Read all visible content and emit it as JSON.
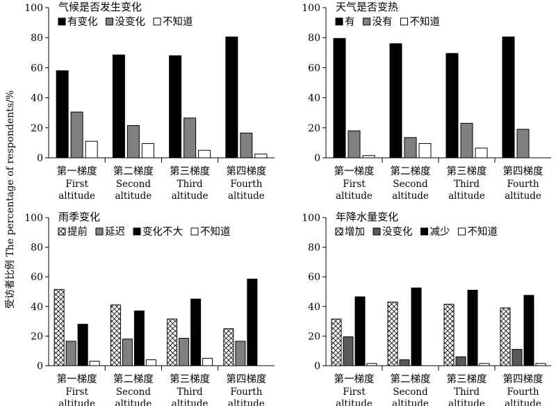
{
  "ylabel": "受访者比例 The percentage of respondents/%",
  "chart_data": [
    {
      "type": "bar",
      "title": "气候是否发生变化",
      "ylim": [
        0,
        100
      ],
      "yticks": [
        0,
        20,
        40,
        60,
        80,
        100
      ],
      "categories": [
        {
          "cn": "第一梯度",
          "en1": "First",
          "en2": "altitude"
        },
        {
          "cn": "第二梯度",
          "en1": "Second",
          "en2": "altitude"
        },
        {
          "cn": "第三梯度",
          "en1": "Third",
          "en2": "altitude"
        },
        {
          "cn": "第四梯度",
          "en1": "Fourth",
          "en2": "altitude"
        }
      ],
      "legend_position": "top-left",
      "series": [
        {
          "name": "有变化",
          "fill": "black",
          "values": [
            58,
            68.5,
            68,
            80.5
          ]
        },
        {
          "name": "没变化",
          "fill": "gray",
          "values": [
            30.5,
            21.5,
            26.5,
            16.5
          ]
        },
        {
          "name": "不知道",
          "fill": "white",
          "values": [
            11,
            9.5,
            5,
            2.5
          ]
        }
      ]
    },
    {
      "type": "bar",
      "title": "天气是否变热",
      "ylim": [
        0,
        100
      ],
      "yticks": [
        0,
        20,
        40,
        60,
        80,
        100
      ],
      "categories": [
        {
          "cn": "第一梯度",
          "en1": "First",
          "en2": "altitude"
        },
        {
          "cn": "第二梯度",
          "en1": "Second",
          "en2": "altitude"
        },
        {
          "cn": "第三梯度",
          "en1": "Third",
          "en2": "altitude"
        },
        {
          "cn": "第四梯度",
          "en1": "Fourth",
          "en2": "altitude"
        }
      ],
      "legend_position": "top-left",
      "series": [
        {
          "name": "有",
          "fill": "black",
          "values": [
            79.5,
            76,
            69.5,
            80.5
          ]
        },
        {
          "name": "没有",
          "fill": "gray",
          "values": [
            18,
            13.5,
            23,
            19
          ]
        },
        {
          "name": "不知道",
          "fill": "white",
          "values": [
            1.5,
            9.5,
            6.5,
            0
          ]
        }
      ]
    },
    {
      "type": "bar",
      "title": "雨季变化",
      "ylim": [
        0,
        100
      ],
      "yticks": [
        0,
        20,
        40,
        60,
        80,
        100
      ],
      "categories": [
        {
          "cn": "第一梯度",
          "en1": "First",
          "en2": "altitude"
        },
        {
          "cn": "第二梯度",
          "en1": "Second",
          "en2": "altitude"
        },
        {
          "cn": "第三梯度",
          "en1": "Third",
          "en2": "altitude"
        },
        {
          "cn": "第四梯度",
          "en1": "Fourth",
          "en2": "altitude"
        }
      ],
      "legend_position": "top-left",
      "series": [
        {
          "name": "提前",
          "fill": "hatch",
          "values": [
            51.5,
            41,
            31.5,
            25
          ]
        },
        {
          "name": "延迟",
          "fill": "gray",
          "values": [
            16.5,
            18,
            18.5,
            16.5
          ]
        },
        {
          "name": "变化不大",
          "fill": "black",
          "values": [
            28,
            37,
            45,
            58.5
          ]
        },
        {
          "name": "不知道",
          "fill": "white",
          "values": [
            3,
            4,
            5,
            0
          ]
        }
      ]
    },
    {
      "type": "bar",
      "title": "年降水量变化",
      "ylim": [
        0,
        100
      ],
      "yticks": [
        0,
        20,
        40,
        60,
        80,
        100
      ],
      "categories": [
        {
          "cn": "第一梯度",
          "en1": "First",
          "en2": "altitude"
        },
        {
          "cn": "第二梯度",
          "en1": "Second",
          "en2": "altitude"
        },
        {
          "cn": "第三梯度",
          "en1": "Third",
          "en2": "altitude"
        },
        {
          "cn": "第四梯度",
          "en1": "Fourth",
          "en2": "altitude"
        }
      ],
      "legend_position": "top-left",
      "series": [
        {
          "name": "增加",
          "fill": "hatch",
          "values": [
            31.5,
            43,
            41.5,
            39
          ]
        },
        {
          "name": "没变化",
          "fill": "darkgray",
          "values": [
            19.5,
            4,
            6,
            11
          ]
        },
        {
          "name": "减少",
          "fill": "black",
          "values": [
            46.5,
            52.5,
            51,
            47.5
          ]
        },
        {
          "name": "不知道",
          "fill": "white",
          "values": [
            1.5,
            0,
            1.5,
            1.5
          ]
        }
      ]
    }
  ]
}
